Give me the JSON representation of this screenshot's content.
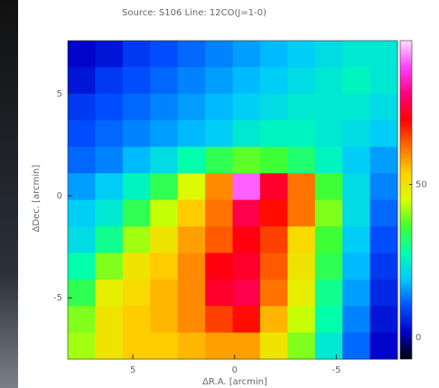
{
  "chart_data": {
    "type": "heatmap",
    "title": "Source: S106 Line: 12CO(J=1-0)",
    "x_label": "ΔR.A. [arcmin]",
    "y_label": "ΔDec. [arcmin]",
    "xlim": [
      8.2,
      -8
    ],
    "xticks": [
      5,
      0,
      -5
    ],
    "ylim": [
      -8,
      7.6
    ],
    "yticks": [
      5,
      0,
      -5
    ],
    "clim": [
      -7,
      97
    ],
    "cticks": [
      0,
      50
    ],
    "colormap": [
      "#000000",
      "#0000c8",
      "#0050ff",
      "#00c8ff",
      "#00ffb0",
      "#40ff30",
      "#d8ff00",
      "#ffd000",
      "#ff7000",
      "#ff0000",
      "#ff0080",
      "#ff40ff",
      "#ffe0ff"
    ],
    "values": [
      [
        2,
        4,
        8,
        10,
        12,
        14,
        16,
        18,
        20,
        22,
        24,
        24
      ],
      [
        4,
        8,
        10,
        12,
        14,
        16,
        18,
        20,
        22,
        24,
        26,
        24
      ],
      [
        8,
        10,
        12,
        14,
        16,
        18,
        20,
        22,
        24,
        24,
        24,
        22
      ],
      [
        10,
        12,
        14,
        16,
        18,
        20,
        24,
        26,
        26,
        24,
        22,
        20
      ],
      [
        12,
        14,
        18,
        22,
        28,
        34,
        38,
        36,
        32,
        26,
        20,
        16
      ],
      [
        16,
        20,
        26,
        34,
        46,
        60,
        90,
        74,
        62,
        36,
        22,
        14
      ],
      [
        20,
        24,
        34,
        44,
        54,
        62,
        76,
        70,
        62,
        40,
        22,
        12
      ],
      [
        22,
        30,
        42,
        50,
        58,
        64,
        72,
        66,
        52,
        36,
        20,
        10
      ],
      [
        28,
        40,
        50,
        54,
        60,
        72,
        74,
        64,
        50,
        34,
        18,
        8
      ],
      [
        34,
        48,
        52,
        56,
        60,
        74,
        76,
        62,
        48,
        30,
        16,
        6
      ],
      [
        40,
        50,
        54,
        56,
        60,
        66,
        70,
        56,
        44,
        28,
        14,
        4
      ],
      [
        42,
        50,
        54,
        54,
        56,
        58,
        58,
        50,
        40,
        24,
        12,
        2
      ]
    ]
  }
}
